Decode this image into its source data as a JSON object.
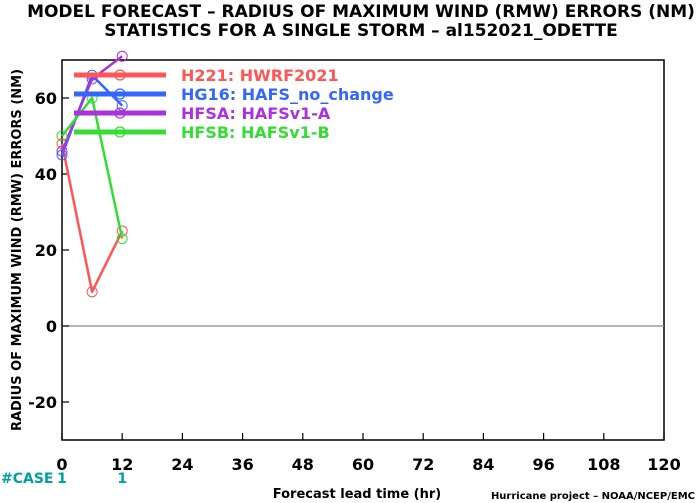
{
  "title_line1": "MODEL FORECAST – RADIUS OF MAXIMUM WIND (RMW) ERRORS (NM)",
  "title_line2": "STATISTICS FOR A SINGLE STORM – al152021_ODETTE",
  "credit": "Hurricane project – NOAA/NCEP/EMC",
  "case_label": "#CASE",
  "case_counts": [
    {
      "x": 0,
      "count": "1"
    },
    {
      "x": 12,
      "count": "1"
    }
  ],
  "colors": {
    "case": "#00a0a0",
    "zero_line": "#888888"
  },
  "chart_data": {
    "type": "line",
    "xlabel": "Forecast lead time (hr)",
    "ylabel": "RADIUS OF MAXIMUM WIND (RMW) ERRORS (NM)",
    "xlim": [
      0,
      120
    ],
    "ylim": [
      -30,
      70
    ],
    "xticks": [
      0,
      12,
      24,
      36,
      48,
      60,
      72,
      84,
      96,
      108,
      120
    ],
    "yticks": [
      -20,
      0,
      20,
      40,
      60
    ],
    "zero_line": true,
    "legend_position": "top-left",
    "series": [
      {
        "name": "H221: HWRF2021",
        "color": "#ff5555",
        "x": [
          0,
          6,
          12
        ],
        "y": [
          48,
          9,
          25
        ]
      },
      {
        "name": "HG16: HAFS_no_change",
        "color": "#3366ff",
        "x": [
          0,
          6,
          12
        ],
        "y": [
          45,
          66,
          58
        ]
      },
      {
        "name": "HFSA: HAFSv1-A",
        "color": "#aa33dd",
        "x": [
          0,
          6,
          12
        ],
        "y": [
          46,
          65,
          71
        ]
      },
      {
        "name": "HFSB: HAFSv1-B",
        "color": "#33dd33",
        "x": [
          0,
          6,
          12
        ],
        "y": [
          50,
          60,
          23
        ]
      }
    ]
  }
}
